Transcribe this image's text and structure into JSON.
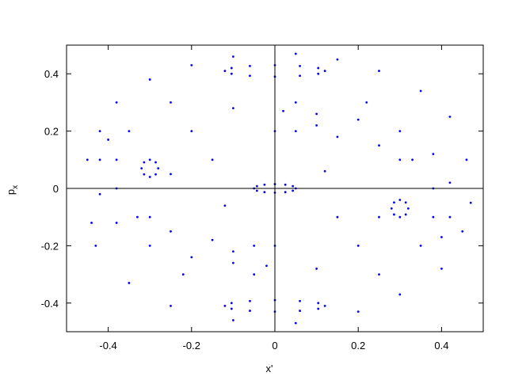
{
  "chart_data": {
    "type": "scatter",
    "xlabel": "x'",
    "ylabel": "p",
    "ylabel_sub": "x",
    "xlim": [
      -0.5,
      0.5
    ],
    "ylim": [
      -0.5,
      0.5
    ],
    "xticks": [
      -0.4,
      -0.2,
      0,
      0.2,
      0.4
    ],
    "yticks": [
      -0.4,
      -0.2,
      0,
      0.2,
      0.4
    ],
    "zero_lines": true,
    "series": [
      {
        "color": "#0000ff",
        "x": [
          -0.45,
          -0.44,
          -0.42,
          -0.38,
          -0.3,
          -0.2,
          -0.1,
          0.05,
          0.15,
          0.25,
          0.35,
          0.42,
          0.46,
          0.47,
          0.45,
          0.4,
          0.3,
          0.2,
          0.05,
          -0.1,
          -0.25,
          -0.35,
          -0.43,
          -0.2,
          -0.1,
          0.05,
          0.1,
          -0.15,
          0.15,
          0.2,
          0.1,
          -0.05,
          -0.1,
          0.25,
          -0.25,
          0.12,
          -0.12,
          0.3,
          -0.3,
          0.0,
          0.0,
          0.22,
          -0.22,
          0.35,
          -0.35,
          0.25,
          -0.25
        ],
        "values": [
          0.1,
          -0.12,
          0.2,
          0.3,
          0.38,
          0.43,
          0.46,
          0.47,
          0.45,
          0.41,
          0.34,
          0.25,
          0.1,
          -0.05,
          -0.15,
          -0.28,
          -0.37,
          -0.43,
          -0.47,
          -0.46,
          -0.41,
          -0.33,
          -0.2,
          0.2,
          0.28,
          0.3,
          0.22,
          0.1,
          -0.1,
          -0.2,
          -0.28,
          -0.3,
          -0.22,
          -0.1,
          0.05,
          0.06,
          -0.06,
          0.1,
          -0.1,
          0.2,
          -0.2,
          0.3,
          -0.3,
          -0.2,
          0.2,
          -0.3,
          0.3
        ]
      },
      {
        "color": "#0000ff",
        "x": [
          0.12,
          0.104,
          0.06,
          0,
          -0.06,
          -0.104,
          -0.12,
          -0.104,
          -0.06,
          0,
          0.06,
          0.104
        ],
        "values": [
          0.41,
          0.42,
          0.427,
          0.43,
          0.427,
          0.42,
          0.41,
          0.4,
          0.393,
          0.39,
          0.393,
          0.4
        ]
      },
      {
        "color": "#0000ff",
        "x": [
          0.12,
          0.104,
          0.06,
          0,
          -0.06,
          -0.104,
          -0.12,
          -0.104,
          -0.06,
          0,
          0.06,
          0.104
        ],
        "values": [
          -0.41,
          -0.42,
          -0.427,
          -0.43,
          -0.427,
          -0.42,
          -0.41,
          -0.4,
          -0.393,
          -0.39,
          -0.393,
          -0.4
        ]
      },
      {
        "color": "#0000ff",
        "x": [
          0.05,
          0.043,
          0.025,
          0,
          -0.025,
          -0.043,
          -0.05,
          -0.043,
          -0.025,
          0,
          0.025,
          0.043
        ],
        "values": [
          0,
          0.008,
          0.013,
          0.015,
          0.013,
          0.008,
          0,
          -0.008,
          -0.013,
          -0.015,
          -0.013,
          -0.008
        ]
      },
      {
        "color": "#0000ff",
        "x": [
          0.02,
          0.1,
          0.2,
          0.3,
          0.38,
          0.42,
          0.42,
          0.4,
          0.38,
          0.38,
          0.33,
          0.25,
          0.15,
          0.05
        ],
        "values": [
          0.27,
          0.26,
          0.24,
          0.2,
          0.12,
          0.02,
          -0.1,
          -0.17,
          -0.1,
          0.0,
          0.1,
          0.15,
          0.18,
          0.2
        ]
      },
      {
        "color": "#0000ff",
        "x": [
          -0.02,
          -0.1,
          -0.2,
          -0.3,
          -0.38,
          -0.42,
          -0.42,
          -0.4,
          -0.38,
          -0.38,
          -0.33,
          -0.25,
          -0.15,
          -0.05
        ],
        "values": [
          -0.27,
          -0.26,
          -0.24,
          -0.2,
          -0.12,
          -0.02,
          0.1,
          0.17,
          0.1,
          0.0,
          -0.1,
          -0.15,
          -0.18,
          -0.2
        ]
      },
      {
        "color": "#0000ff",
        "x": [
          0.32,
          0.314,
          0.3,
          0.286,
          0.28,
          0.286,
          0.3,
          0.314
        ],
        "values": [
          -0.07,
          -0.049,
          -0.04,
          -0.049,
          -0.07,
          -0.091,
          -0.1,
          -0.091
        ]
      },
      {
        "color": "#0000ff",
        "x": [
          -0.32,
          -0.314,
          -0.3,
          -0.286,
          -0.28,
          -0.286,
          -0.3,
          -0.314
        ],
        "values": [
          0.07,
          0.049,
          0.04,
          0.049,
          0.07,
          0.091,
          0.1,
          0.091
        ]
      }
    ]
  }
}
